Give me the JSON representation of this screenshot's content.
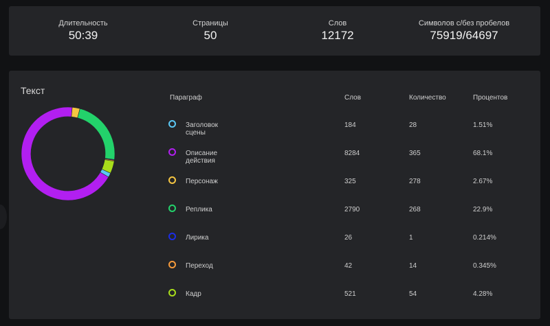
{
  "stats": [
    {
      "label": "Длительность",
      "value": "50:39"
    },
    {
      "label": "Страницы",
      "value": "50"
    },
    {
      "label": "Слов",
      "value": "12172"
    },
    {
      "label": "Символов с/без пробелов",
      "value": "75919/64697"
    }
  ],
  "section_title": "Текст",
  "table": {
    "headers": [
      "Параграф",
      "Слов",
      "Количество",
      "Процентов"
    ],
    "rows": [
      {
        "name": "Заголовок сцены",
        "words": "184",
        "count": "28",
        "percent": "1.51%",
        "color": "#5bc8f5"
      },
      {
        "name": "Описание действия",
        "words": "8284",
        "count": "365",
        "percent": "68.1%",
        "color": "#b21ff1"
      },
      {
        "name": "Персонаж",
        "words": "325",
        "count": "278",
        "percent": "2.67%",
        "color": "#f5c542"
      },
      {
        "name": "Реплика",
        "words": "2790",
        "count": "268",
        "percent": "22.9%",
        "color": "#23d26b"
      },
      {
        "name": "Лирика",
        "words": "26",
        "count": "1",
        "percent": "0.214%",
        "color": "#1c2de6"
      },
      {
        "name": "Переход",
        "words": "42",
        "count": "14",
        "percent": "0.345%",
        "color": "#f59a3c"
      },
      {
        "name": "Кадр",
        "words": "521",
        "count": "54",
        "percent": "4.28%",
        "color": "#a8dd1b"
      }
    ]
  },
  "chart_data": {
    "type": "pie",
    "donut": true,
    "categories": [
      "Заголовок сцены",
      "Описание действия",
      "Персонаж",
      "Реплика",
      "Лирика",
      "Переход",
      "Кадр"
    ],
    "values": [
      1.51,
      68.1,
      2.67,
      22.9,
      0.214,
      0.345,
      4.28
    ],
    "colors": [
      "#5bc8f5",
      "#b21ff1",
      "#f5c542",
      "#23d26b",
      "#1c2de6",
      "#f59a3c",
      "#a8dd1b"
    ]
  }
}
